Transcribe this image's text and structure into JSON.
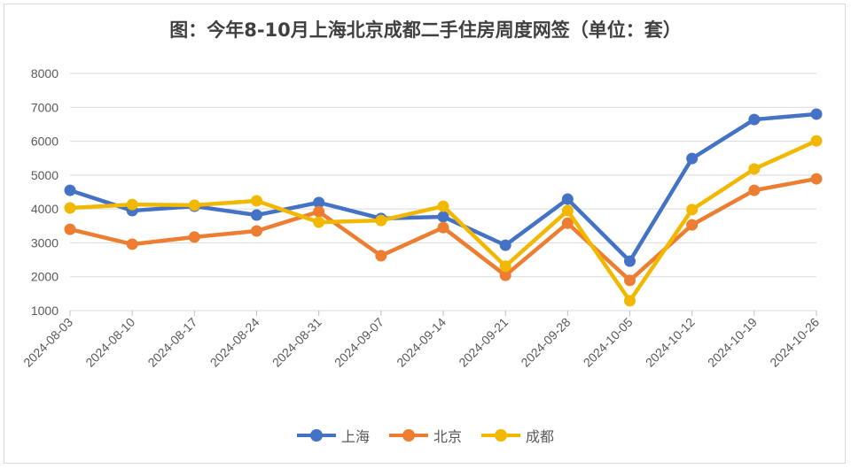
{
  "chart_data": {
    "type": "line",
    "title": "图：今年8-10月上海北京成都二手住房周度网签（单位：套）",
    "xlabel": "",
    "ylabel": "",
    "ylim": [
      1000,
      8000
    ],
    "yticks": [
      "1000",
      "2000",
      "3000",
      "4000",
      "5000",
      "6000",
      "7000",
      "8000"
    ],
    "categories": [
      "2024-08-03",
      "2024-08-10",
      "2024-08-17",
      "2024-08-24",
      "2024-08-31",
      "2024-09-07",
      "2024-09-14",
      "2024-09-21",
      "2024-09-28",
      "2024-10-05",
      "2024-10-12",
      "2024-10-19",
      "2024-10-26"
    ],
    "grid": true,
    "legend": "bottom",
    "series": [
      {
        "name": "上海",
        "color": "#4472c4",
        "values": [
          4550,
          3950,
          4080,
          3820,
          4190,
          3720,
          3770,
          2930,
          4290,
          2460,
          5490,
          6640,
          6800
        ]
      },
      {
        "name": "北京",
        "color": "#ed7d31",
        "values": [
          3400,
          2960,
          3170,
          3350,
          3920,
          2620,
          3450,
          2040,
          3580,
          1890,
          3530,
          4550,
          4890
        ]
      },
      {
        "name": "成都",
        "color": "#f2b800",
        "values": [
          4030,
          4130,
          4110,
          4240,
          3610,
          3660,
          4080,
          2310,
          3950,
          1290,
          3980,
          5180,
          6010
        ]
      }
    ]
  }
}
